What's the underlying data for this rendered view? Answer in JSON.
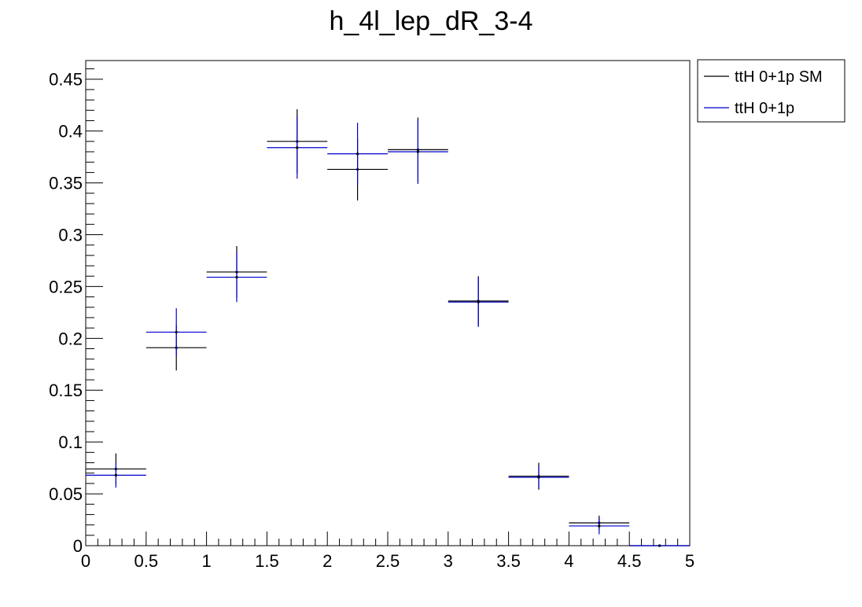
{
  "chart_data": {
    "type": "scatter",
    "title": "h_4l_lep_dR_3-4",
    "xlabel": "",
    "ylabel": "",
    "xlim": [
      0,
      5
    ],
    "ylim": [
      0,
      0.468
    ],
    "x_ticks": [
      "0",
      "0.5",
      "1",
      "1.5",
      "2",
      "2.5",
      "3",
      "3.5",
      "4",
      "4.5",
      "5"
    ],
    "y_ticks": [
      "0",
      "0.05",
      "0.1",
      "0.15",
      "0.2",
      "0.25",
      "0.3",
      "0.35",
      "0.4",
      "0.45"
    ],
    "legend_position": "top-right, outside plot",
    "grid": false,
    "bin_edges": [
      0,
      0.5,
      1,
      1.5,
      2,
      2.5,
      3,
      3.5,
      4,
      4.5,
      5
    ],
    "series": [
      {
        "name": "ttH 0+1p SM",
        "color": "#000000",
        "x": [
          0.25,
          0.75,
          1.25,
          1.75,
          2.25,
          2.75,
          3.25,
          3.75,
          4.25,
          4.75
        ],
        "values": [
          0.074,
          0.191,
          0.264,
          0.39,
          0.363,
          0.382,
          0.236,
          0.067,
          0.022,
          0.0
        ],
        "errors": [
          0.015,
          0.022,
          0.025,
          0.031,
          0.03,
          0.031,
          0.024,
          0.013,
          0.007,
          0.0
        ]
      },
      {
        "name": "ttH 0+1p",
        "color": "#0000cc",
        "x": [
          0.25,
          0.75,
          1.25,
          1.75,
          2.25,
          2.75,
          3.25,
          3.75,
          4.25,
          4.75
        ],
        "values": [
          0.068,
          0.206,
          0.259,
          0.384,
          0.378,
          0.38,
          0.235,
          0.066,
          0.019,
          0.0
        ],
        "errors": [
          0.012,
          0.023,
          0.024,
          0.03,
          0.03,
          0.031,
          0.024,
          0.011,
          0.008,
          0.0
        ]
      }
    ]
  }
}
